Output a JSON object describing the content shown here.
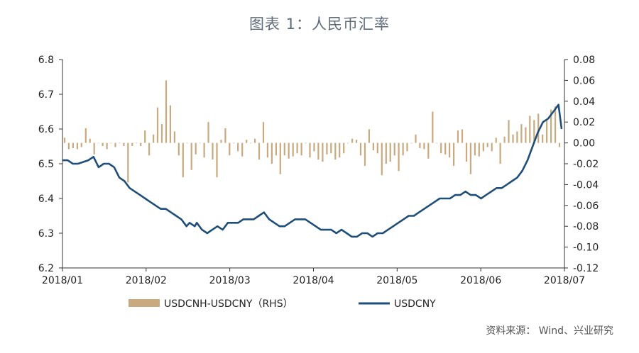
{
  "title": "图表 1：人民币汇率",
  "source": "资料来源： Wind、兴业研究",
  "colors": {
    "bar": "#c9a97e",
    "line": "#1f4e79",
    "axis": "#333333"
  },
  "chart_data": {
    "type": "bar+line",
    "x_ticks": [
      "2018/01",
      "2018/02",
      "2018/03",
      "2018/04",
      "2018/05",
      "2018/06",
      "2018/07"
    ],
    "y_left": {
      "min": 6.2,
      "max": 6.8,
      "step": 0.1,
      "ticks": [
        "6.2",
        "6.3",
        "6.4",
        "6.5",
        "6.6",
        "6.7",
        "6.8"
      ]
    },
    "y_right": {
      "min": -0.12,
      "max": 0.08,
      "step": 0.02,
      "ticks": [
        "-0.12",
        "-0.10",
        "-0.08",
        "-0.06",
        "-0.04",
        "-0.02",
        "0.00",
        "0.02",
        "0.04",
        "0.06",
        "0.08"
      ]
    },
    "legend": [
      {
        "name": "USDCNH-USDCNY（RHS）",
        "kind": "bar"
      },
      {
        "name": "USDCNY",
        "kind": "line"
      }
    ],
    "series_line": {
      "name": "USDCNY",
      "points": [
        [
          0.0,
          6.51
        ],
        [
          0.5,
          6.51
        ],
        [
          1.0,
          6.5
        ],
        [
          1.5,
          6.5
        ],
        [
          2.5,
          6.51
        ],
        [
          3.0,
          6.52
        ],
        [
          3.5,
          6.49
        ],
        [
          4.0,
          6.5
        ],
        [
          4.5,
          6.5
        ],
        [
          5.0,
          6.49
        ],
        [
          5.5,
          6.46
        ],
        [
          6.0,
          6.45
        ],
        [
          6.5,
          6.43
        ],
        [
          7.0,
          6.42
        ],
        [
          7.5,
          6.41
        ],
        [
          8.0,
          6.4
        ],
        [
          8.5,
          6.39
        ],
        [
          9.0,
          6.38
        ],
        [
          9.5,
          6.37
        ],
        [
          10.0,
          6.37
        ],
        [
          10.5,
          6.36
        ],
        [
          11.0,
          6.35
        ],
        [
          11.5,
          6.34
        ],
        [
          12.0,
          6.32
        ],
        [
          12.3,
          6.33
        ],
        [
          12.8,
          6.32
        ],
        [
          13.0,
          6.33
        ],
        [
          13.5,
          6.31
        ],
        [
          14.0,
          6.3
        ],
        [
          14.5,
          6.31
        ],
        [
          15.0,
          6.32
        ],
        [
          15.5,
          6.31
        ],
        [
          16.0,
          6.33
        ],
        [
          16.5,
          6.33
        ],
        [
          17.0,
          6.33
        ],
        [
          17.5,
          6.34
        ],
        [
          18.0,
          6.34
        ],
        [
          18.5,
          6.34
        ],
        [
          19.0,
          6.35
        ],
        [
          19.5,
          6.36
        ],
        [
          20.0,
          6.34
        ],
        [
          20.5,
          6.33
        ],
        [
          21.0,
          6.32
        ],
        [
          21.5,
          6.32
        ],
        [
          22.0,
          6.33
        ],
        [
          22.5,
          6.34
        ],
        [
          23.0,
          6.34
        ],
        [
          23.5,
          6.34
        ],
        [
          24.0,
          6.33
        ],
        [
          24.5,
          6.32
        ],
        [
          25.0,
          6.31
        ],
        [
          25.5,
          6.31
        ],
        [
          26.0,
          6.31
        ],
        [
          26.5,
          6.3
        ],
        [
          27.0,
          6.31
        ],
        [
          27.5,
          6.3
        ],
        [
          28.0,
          6.29
        ],
        [
          28.5,
          6.29
        ],
        [
          29.0,
          6.3
        ],
        [
          29.5,
          6.3
        ],
        [
          30.0,
          6.29
        ],
        [
          30.5,
          6.3
        ],
        [
          31.0,
          6.3
        ],
        [
          31.5,
          6.31
        ],
        [
          32.0,
          6.32
        ],
        [
          32.5,
          6.33
        ],
        [
          33.0,
          6.34
        ],
        [
          33.5,
          6.35
        ],
        [
          34.0,
          6.35
        ],
        [
          34.5,
          6.36
        ],
        [
          35.0,
          6.37
        ],
        [
          35.5,
          6.38
        ],
        [
          36.0,
          6.39
        ],
        [
          36.5,
          6.4
        ],
        [
          37.0,
          6.4
        ],
        [
          37.5,
          6.4
        ],
        [
          38.0,
          6.41
        ],
        [
          38.5,
          6.41
        ],
        [
          39.0,
          6.42
        ],
        [
          39.5,
          6.41
        ],
        [
          40.0,
          6.41
        ],
        [
          40.5,
          6.4
        ],
        [
          41.0,
          6.41
        ],
        [
          41.5,
          6.42
        ],
        [
          42.0,
          6.43
        ],
        [
          42.5,
          6.43
        ],
        [
          43.0,
          6.44
        ],
        [
          43.5,
          6.45
        ],
        [
          44.0,
          6.46
        ],
        [
          44.5,
          6.48
        ],
        [
          45.0,
          6.51
        ],
        [
          45.5,
          6.55
        ],
        [
          46.0,
          6.59
        ],
        [
          46.5,
          6.62
        ],
        [
          47.0,
          6.63
        ],
        [
          47.5,
          6.65
        ],
        [
          48.0,
          6.67
        ],
        [
          48.3,
          6.6
        ]
      ]
    },
    "series_bars": {
      "name": "USDCNH-USDCNY（RHS）",
      "values": [
        0.005,
        -0.006,
        -0.005,
        -0.006,
        -0.004,
        0.014,
        0.004,
        -0.011,
        0.0,
        -0.003,
        -0.006,
        0.0,
        -0.004,
        0.0,
        -0.003,
        -0.038,
        -0.003,
        0.0,
        -0.003,
        0.012,
        -0.012,
        0.008,
        0.034,
        0.018,
        0.06,
        0.036,
        0.011,
        -0.012,
        -0.033,
        0.0,
        -0.026,
        -0.011,
        0.0,
        -0.014,
        0.02,
        -0.016,
        -0.033,
        0.003,
        0.014,
        -0.012,
        0.0,
        -0.008,
        -0.013,
        0.003,
        0.0,
        0.004,
        -0.016,
        0.02,
        -0.014,
        -0.02,
        -0.012,
        -0.03,
        -0.012,
        -0.015,
        -0.013,
        -0.01,
        -0.012,
        0.0,
        -0.014,
        -0.008,
        -0.016,
        -0.018,
        -0.011,
        -0.01,
        -0.016,
        -0.014,
        -0.01,
        0.0,
        0.004,
        0.003,
        -0.012,
        -0.022,
        0.013,
        -0.007,
        -0.01,
        -0.031,
        -0.02,
        -0.018,
        -0.012,
        -0.027,
        -0.012,
        -0.008,
        0.0,
        0.008,
        -0.005,
        -0.006,
        -0.015,
        0.03,
        0.0,
        -0.01,
        -0.011,
        -0.014,
        -0.022,
        0.012,
        0.013,
        -0.018,
        -0.03,
        -0.012,
        -0.013,
        -0.008,
        -0.004,
        -0.008,
        0.005,
        -0.02,
        0.006,
        0.022,
        0.008,
        0.011,
        0.018,
        0.015,
        0.026,
        0.022,
        0.028,
        0.008,
        0.022,
        0.032,
        0.035,
        -0.004
      ]
    }
  }
}
